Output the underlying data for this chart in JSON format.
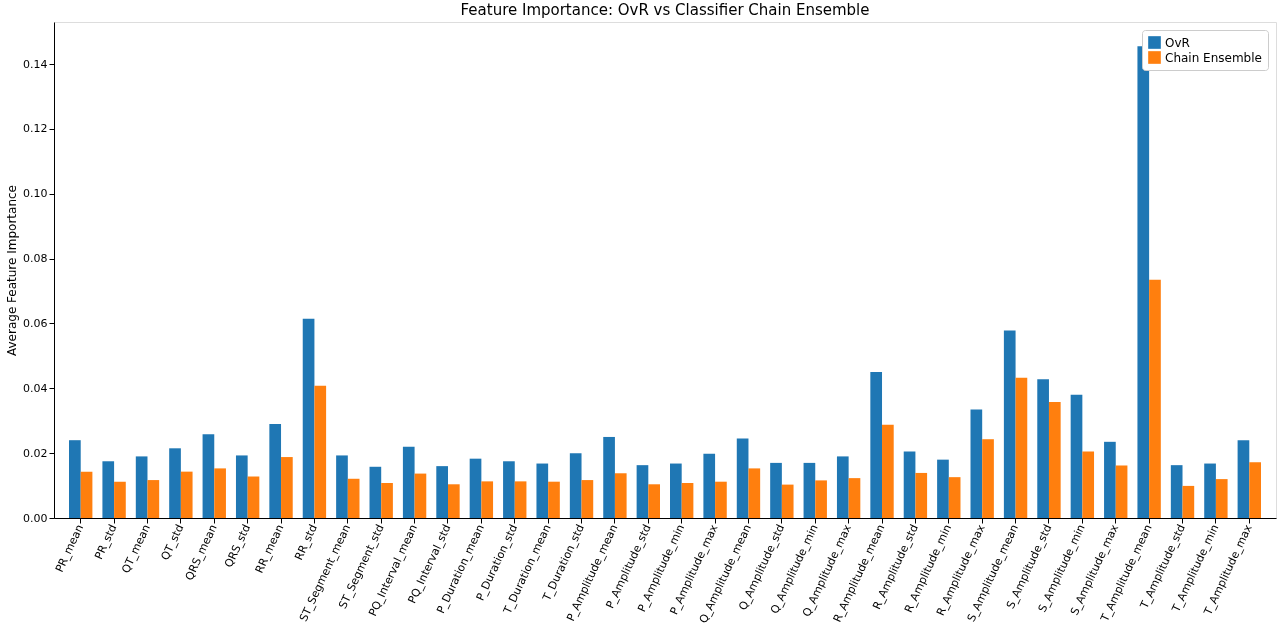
{
  "chart_data": {
    "type": "bar",
    "title": "Feature Importance: OvR vs Classifier Chain Ensemble",
    "ylabel": "Average Feature Importance",
    "categories": [
      "PR_mean",
      "PR_std",
      "QT_mean",
      "QT_std",
      "QRS_mean",
      "QRS_std",
      "RR_mean",
      "RR_std",
      "ST_Segment_mean",
      "ST_Segment_std",
      "PQ_Interval_mean",
      "PQ_Interval_std",
      "P_Duration_mean",
      "P_Duration_std",
      "T_Duration_mean",
      "T_Duration_std",
      "P_Amplitude_mean",
      "P_Amplitude_std",
      "P_Amplitude_min",
      "P_Amplitude_max",
      "Q_Amplitude_mean",
      "Q_Amplitude_std",
      "Q_Amplitude_min",
      "Q_Amplitude_max",
      "R_Amplitude_mean",
      "R_Amplitude_std",
      "R_Amplitude_min",
      "R_Amplitude_max",
      "S_Amplitude_mean",
      "S_Amplitude_std",
      "S_Amplitude_min",
      "S_Amplitude_max",
      "T_Amplitude_mean",
      "T_Amplitude_std",
      "T_Amplitude_min",
      "T_Amplitude_max"
    ],
    "series": [
      {
        "name": "OvR",
        "color": "#1f77b4",
        "values": [
          0.024,
          0.0175,
          0.019,
          0.0215,
          0.0258,
          0.0193,
          0.029,
          0.0615,
          0.0193,
          0.0158,
          0.022,
          0.016,
          0.0183,
          0.0175,
          0.0168,
          0.02,
          0.025,
          0.0163,
          0.0168,
          0.0198,
          0.0245,
          0.017,
          0.017,
          0.019,
          0.045,
          0.0205,
          0.018,
          0.0335,
          0.0578,
          0.0428,
          0.038,
          0.0235,
          0.1455,
          0.0163,
          0.0168,
          0.024
        ]
      },
      {
        "name": "Chain Ensemble",
        "color": "#ff7f0e",
        "values": [
          0.0143,
          0.0112,
          0.0117,
          0.0143,
          0.0153,
          0.0128,
          0.0188,
          0.0408,
          0.0121,
          0.0108,
          0.0137,
          0.0104,
          0.0113,
          0.0113,
          0.0112,
          0.0117,
          0.0138,
          0.0104,
          0.0108,
          0.0112,
          0.0153,
          0.0103,
          0.0116,
          0.0123,
          0.0288,
          0.0139,
          0.0126,
          0.0243,
          0.0433,
          0.0358,
          0.0205,
          0.0162,
          0.0735,
          0.0099,
          0.012,
          0.0172
        ]
      }
    ],
    "ylim": [
      0,
      0.153
    ],
    "yticks": [
      {
        "value": 0,
        "label": "0.00"
      },
      {
        "value": 0.02,
        "label": "0.02"
      },
      {
        "value": 0.04,
        "label": "0.04"
      },
      {
        "value": 0.06,
        "label": "0.06"
      },
      {
        "value": 0.08,
        "label": "0.08"
      },
      {
        "value": 0.1,
        "label": "0.10"
      },
      {
        "value": 0.12,
        "label": "0.12"
      },
      {
        "value": 0.14,
        "label": "0.14"
      }
    ],
    "legend": "top right",
    "grid": false
  }
}
